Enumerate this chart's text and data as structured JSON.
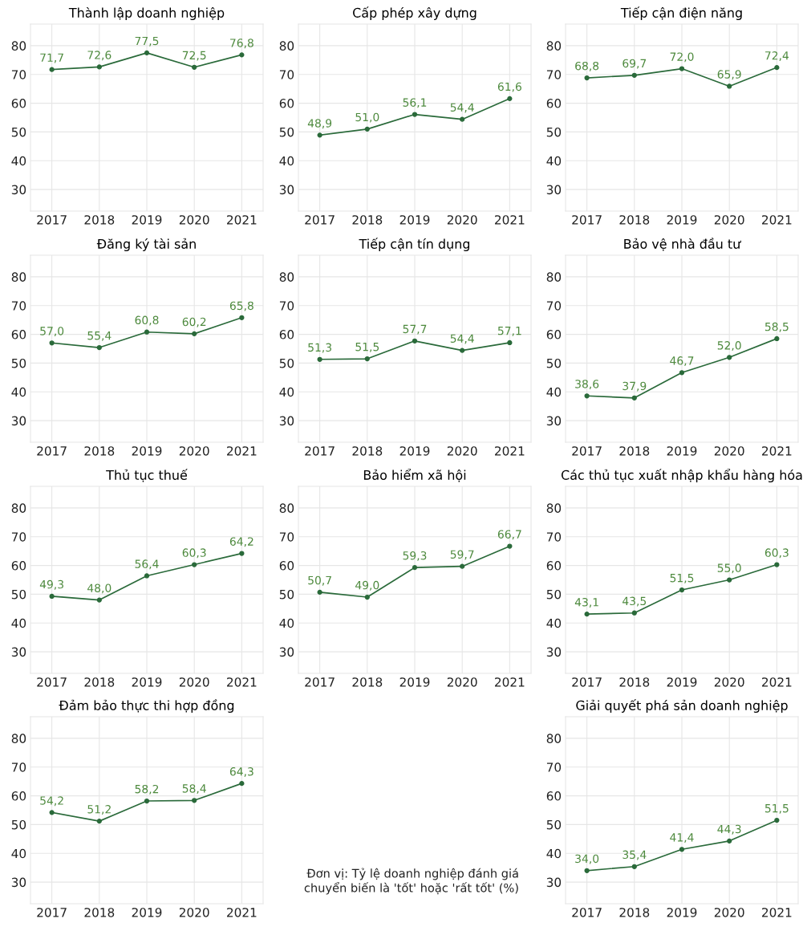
{
  "chart_data": [
    {
      "type": "line",
      "title": "Thành lập doanh nghiệp",
      "categories": [
        "2017",
        "2018",
        "2019",
        "2020",
        "2021"
      ],
      "values": [
        71.7,
        72.6,
        77.5,
        72.5,
        76.8
      ],
      "value_labels": [
        "71,7",
        "72,6",
        "77,5",
        "72,5",
        "76,8"
      ],
      "color": "#2a6a3a",
      "ylim": [
        22.5,
        87.5
      ],
      "yticks": [
        30,
        40,
        50,
        60,
        70,
        80
      ],
      "grid": true,
      "marker": "circle"
    },
    {
      "type": "line",
      "title": "Cấp phép xây dựng",
      "categories": [
        "2017",
        "2018",
        "2019",
        "2020",
        "2021"
      ],
      "values": [
        48.9,
        51.0,
        56.1,
        54.4,
        61.6
      ],
      "value_labels": [
        "48,9",
        "51,0",
        "56,1",
        "54,4",
        "61,6"
      ],
      "color": "#2a6a3a",
      "ylim": [
        22.5,
        87.5
      ],
      "yticks": [
        30,
        40,
        50,
        60,
        70,
        80
      ],
      "grid": true,
      "marker": "circle"
    },
    {
      "type": "line",
      "title": "Tiếp cận điện năng",
      "categories": [
        "2017",
        "2018",
        "2019",
        "2020",
        "2021"
      ],
      "values": [
        68.8,
        69.7,
        72.0,
        65.9,
        72.4
      ],
      "value_labels": [
        "68,8",
        "69,7",
        "72,0",
        "65,9",
        "72,4"
      ],
      "color": "#2a6a3a",
      "ylim": [
        22.5,
        87.5
      ],
      "yticks": [
        30,
        40,
        50,
        60,
        70,
        80
      ],
      "grid": true,
      "marker": "circle"
    },
    {
      "type": "line",
      "title": "Đăng ký tài sản",
      "categories": [
        "2017",
        "2018",
        "2019",
        "2020",
        "2021"
      ],
      "values": [
        57.0,
        55.4,
        60.8,
        60.2,
        65.8
      ],
      "value_labels": [
        "57,0",
        "55,4",
        "60,8",
        "60,2",
        "65,8"
      ],
      "color": "#2a6a3a",
      "ylim": [
        22.5,
        87.5
      ],
      "yticks": [
        30,
        40,
        50,
        60,
        70,
        80
      ],
      "grid": true,
      "marker": "circle"
    },
    {
      "type": "line",
      "title": "Tiếp cận tín dụng",
      "categories": [
        "2017",
        "2018",
        "2019",
        "2020",
        "2021"
      ],
      "values": [
        51.3,
        51.5,
        57.7,
        54.4,
        57.1
      ],
      "value_labels": [
        "51,3",
        "51,5",
        "57,7",
        "54,4",
        "57,1"
      ],
      "color": "#2a6a3a",
      "ylim": [
        22.5,
        87.5
      ],
      "yticks": [
        30,
        40,
        50,
        60,
        70,
        80
      ],
      "grid": true,
      "marker": "circle"
    },
    {
      "type": "line",
      "title": "Bảo vệ nhà đầu tư",
      "categories": [
        "2017",
        "2018",
        "2019",
        "2020",
        "2021"
      ],
      "values": [
        38.6,
        37.9,
        46.7,
        52.0,
        58.5
      ],
      "value_labels": [
        "38,6",
        "37,9",
        "46,7",
        "52,0",
        "58,5"
      ],
      "color": "#2a6a3a",
      "ylim": [
        22.5,
        87.5
      ],
      "yticks": [
        30,
        40,
        50,
        60,
        70,
        80
      ],
      "grid": true,
      "marker": "circle"
    },
    {
      "type": "line",
      "title": "Thủ tục thuế",
      "categories": [
        "2017",
        "2018",
        "2019",
        "2020",
        "2021"
      ],
      "values": [
        49.3,
        48.0,
        56.4,
        60.3,
        64.2
      ],
      "value_labels": [
        "49,3",
        "48,0",
        "56,4",
        "60,3",
        "64,2"
      ],
      "color": "#2a6a3a",
      "ylim": [
        22.5,
        87.5
      ],
      "yticks": [
        30,
        40,
        50,
        60,
        70,
        80
      ],
      "grid": true,
      "marker": "circle"
    },
    {
      "type": "line",
      "title": "Bảo hiểm xã hội",
      "categories": [
        "2017",
        "2018",
        "2019",
        "2020",
        "2021"
      ],
      "values": [
        50.7,
        49.0,
        59.3,
        59.7,
        66.7
      ],
      "value_labels": [
        "50,7",
        "49,0",
        "59,3",
        "59,7",
        "66,7"
      ],
      "color": "#2a6a3a",
      "ylim": [
        22.5,
        87.5
      ],
      "yticks": [
        30,
        40,
        50,
        60,
        70,
        80
      ],
      "grid": true,
      "marker": "circle"
    },
    {
      "type": "line",
      "title": "Các thủ tục xuất nhập khẩu hàng hóa",
      "categories": [
        "2017",
        "2018",
        "2019",
        "2020",
        "2021"
      ],
      "values": [
        43.1,
        43.5,
        51.5,
        55.0,
        60.3
      ],
      "value_labels": [
        "43,1",
        "43,5",
        "51,5",
        "55,0",
        "60,3"
      ],
      "color": "#2a6a3a",
      "ylim": [
        22.5,
        87.5
      ],
      "yticks": [
        30,
        40,
        50,
        60,
        70,
        80
      ],
      "grid": true,
      "marker": "circle"
    },
    {
      "type": "line",
      "title": "Đảm bảo thực thi hợp đồng",
      "categories": [
        "2017",
        "2018",
        "2019",
        "2020",
        "2021"
      ],
      "values": [
        54.2,
        51.2,
        58.2,
        58.4,
        64.3
      ],
      "value_labels": [
        "54,2",
        "51,2",
        "58,2",
        "58,4",
        "64,3"
      ],
      "color": "#2a6a3a",
      "ylim": [
        22.5,
        87.5
      ],
      "yticks": [
        30,
        40,
        50,
        60,
        70,
        80
      ],
      "grid": true,
      "marker": "circle"
    },
    {
      "type": "line",
      "title": "Giải quyết phá sản doanh nghiệp",
      "categories": [
        "2017",
        "2018",
        "2019",
        "2020",
        "2021"
      ],
      "values": [
        34.0,
        35.4,
        41.4,
        44.3,
        51.5
      ],
      "value_labels": [
        "34,0",
        "35,4",
        "41,4",
        "44,3",
        "51,5"
      ],
      "color": "#2a6a3a",
      "ylim": [
        22.5,
        87.5
      ],
      "yticks": [
        30,
        40,
        50,
        60,
        70,
        80
      ],
      "grid": true,
      "marker": "circle",
      "annotations": [
        "Đơn vị: Tỷ lệ doanh nghiệp đánh giá\n  chuyển biến là 'tốt' hoặc 'rất tốt' (%)"
      ]
    }
  ]
}
